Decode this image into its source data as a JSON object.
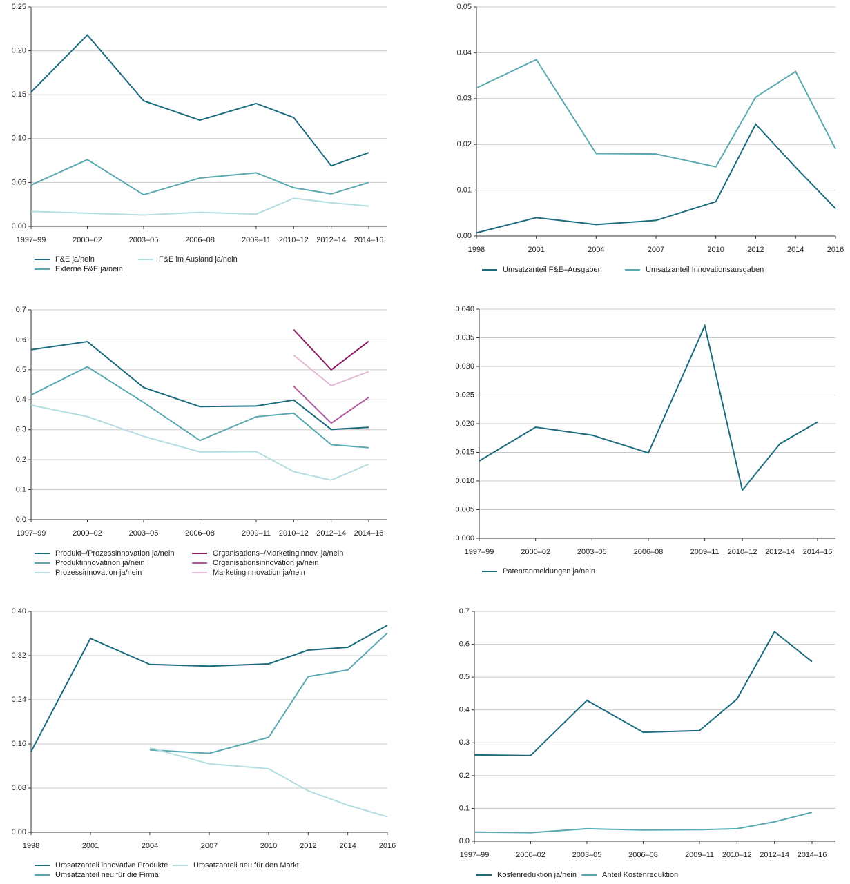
{
  "chart_data": [
    {
      "type": "line",
      "categories": [
        "1997–99",
        "2000–02",
        "2003–05",
        "2006–08",
        "2009–11",
        "2010–12",
        "2012–14",
        "2014–16"
      ],
      "ylim": [
        0,
        0.25
      ],
      "yticks": [
        {
          "value": 0,
          "label": "0.00"
        },
        {
          "value": 0.05,
          "label": "0.05"
        },
        {
          "value": 0.1,
          "label": "0.10"
        },
        {
          "value": 0.15,
          "label": "0.15"
        },
        {
          "value": 0.2,
          "label": "0.20"
        },
        {
          "value": 0.25,
          "label": "0.25"
        }
      ],
      "grid": true,
      "series": [
        {
          "name": "F&E ja/nein",
          "color": "#1b6b7e",
          "values": [
            0.153,
            0.218,
            0.143,
            0.121,
            0.14,
            0.124,
            0.069,
            0.084
          ]
        },
        {
          "name": "Externe F&E ja/nein",
          "color": "#5aa9b0",
          "values": [
            0.047,
            0.076,
            0.036,
            0.055,
            0.061,
            0.044,
            0.037,
            0.05
          ]
        },
        {
          "name": "F&E im Ausland ja/nein",
          "color": "#b3dde2",
          "values": [
            0.017,
            0.015,
            0.013,
            0.016,
            0.014,
            0.032,
            0.027,
            0.023
          ]
        }
      ]
    },
    {
      "type": "line",
      "x": [
        1998,
        2001,
        2004,
        2007,
        2010,
        2012,
        2014,
        2016
      ],
      "xlim": [
        1998,
        2016
      ],
      "xticks": [
        1998,
        2001,
        2004,
        2007,
        2010,
        2012,
        2014,
        2016
      ],
      "ylim": [
        0,
        0.05
      ],
      "yticks": [
        {
          "value": 0,
          "label": "0.00"
        },
        {
          "value": 0.01,
          "label": "0.01"
        },
        {
          "value": 0.02,
          "label": "0.02"
        },
        {
          "value": 0.03,
          "label": "0.03"
        },
        {
          "value": 0.04,
          "label": "0.04"
        },
        {
          "value": 0.05,
          "label": "0.05"
        }
      ],
      "grid": true,
      "series": [
        {
          "name": "Umsatzanteil F&E–Ausgaben",
          "color": "#1b6b7e",
          "values": [
            0.0007,
            0.004,
            0.0025,
            0.0034,
            0.0075,
            0.0244,
            0.015,
            0.006
          ]
        },
        {
          "name": "Umsatzanteil Innovationsausgaben",
          "color": "#5aa9b0",
          "values": [
            0.0323,
            0.0385,
            0.018,
            0.0179,
            0.0151,
            0.0303,
            0.0359,
            0.019
          ]
        }
      ]
    },
    {
      "type": "line",
      "categories": [
        "1997–99",
        "2000–02",
        "2003–05",
        "2006–08",
        "2009–11",
        "2010–12",
        "2012–14",
        "2014–16"
      ],
      "ylim": [
        0,
        0.7
      ],
      "yticks": [
        {
          "value": 0,
          "label": "0.0"
        },
        0.1,
        0.2,
        0.3,
        0.4,
        0.5,
        0.6,
        0.7
      ],
      "grid": true,
      "series": [
        {
          "name": "Produkt–/Prozessinnovation ja/nein",
          "color": "#1b6b7e",
          "values": [
            0.567,
            0.594,
            0.441,
            0.377,
            0.379,
            0.399,
            0.301,
            0.308
          ]
        },
        {
          "name": "Produktinnovatinon ja/nein",
          "color": "#5aa9b0",
          "values": [
            0.416,
            0.51,
            0.391,
            0.264,
            0.343,
            0.355,
            0.25,
            0.24
          ]
        },
        {
          "name": "Prozessinnovation ja/nein",
          "color": "#b3dde2",
          "values": [
            0.382,
            0.344,
            0.278,
            0.226,
            0.227,
            0.16,
            0.132,
            0.185
          ]
        },
        {
          "name": "Organisations–/Marketinginnov. ja/nein",
          "color": "#8a1e62",
          "values": [
            null,
            null,
            null,
            null,
            null,
            0.634,
            0.5,
            0.595
          ]
        },
        {
          "name": "Organisationsinnovation ja/nein",
          "color": "#b05aa0",
          "values": [
            null,
            null,
            null,
            null,
            null,
            0.445,
            0.322,
            0.408
          ]
        },
        {
          "name": "Marketinginnovation ja/nein",
          "color": "#e4b8d6",
          "values": [
            null,
            null,
            null,
            null,
            null,
            0.549,
            0.447,
            0.494
          ]
        }
      ]
    },
    {
      "type": "line",
      "categories": [
        "1997–99",
        "2000–02",
        "2003–05",
        "2006–08",
        "2009–11",
        "2010–12",
        "2012–14",
        "2014–16"
      ],
      "ylim": [
        0,
        0.04
      ],
      "yticks": [
        {
          "value": 0,
          "label": "0.000"
        },
        {
          "value": 0.005,
          "label": "0.005"
        },
        {
          "value": 0.01,
          "label": "0.010"
        },
        {
          "value": 0.015,
          "label": "0.015"
        },
        {
          "value": 0.02,
          "label": "0.020"
        },
        {
          "value": 0.025,
          "label": "0.025"
        },
        {
          "value": 0.03,
          "label": "0.030"
        },
        {
          "value": 0.035,
          "label": "0.035"
        },
        {
          "value": 0.04,
          "label": "0.040"
        }
      ],
      "grid": true,
      "series": [
        {
          "name": "Patentanmeldungen ja/nein",
          "color": "#1b6b7e",
          "values": [
            0.0135,
            0.0194,
            0.018,
            0.0149,
            0.0371,
            0.0084,
            0.0165,
            0.0203
          ]
        }
      ]
    },
    {
      "type": "line",
      "x": [
        1998,
        2001,
        2004,
        2007,
        2010,
        2012,
        2014,
        2016
      ],
      "xlim": [
        1998,
        2016
      ],
      "xticks": [
        1998,
        2001,
        2004,
        2007,
        2010,
        2012,
        2014,
        2016
      ],
      "ylim": [
        0,
        0.4
      ],
      "yticks": [
        {
          "value": 0,
          "label": "0.00"
        },
        {
          "value": 0.08,
          "label": "0.08"
        },
        {
          "value": 0.16,
          "label": "0.16"
        },
        {
          "value": 0.24,
          "label": "0.24"
        },
        {
          "value": 0.32,
          "label": "0.32"
        },
        {
          "value": 0.4,
          "label": "0.40"
        }
      ],
      "grid": true,
      "series": [
        {
          "name": "Umsatzanteil innovative Produkte",
          "color": "#1b6b7e",
          "values": [
            0.146,
            0.351,
            0.304,
            0.301,
            0.305,
            0.33,
            0.335,
            0.375
          ]
        },
        {
          "name": "Umsatzanteil neu für die Firma",
          "color": "#5aa9b0",
          "values": [
            null,
            null,
            0.149,
            0.143,
            0.172,
            0.282,
            0.294,
            0.361
          ]
        },
        {
          "name": "Umsatzanteil neu für den Markt",
          "color": "#b3dde2",
          "values": [
            null,
            null,
            0.153,
            0.124,
            0.115,
            0.075,
            0.049,
            0.028
          ]
        }
      ]
    },
    {
      "type": "line",
      "categories": [
        "1997–99",
        "2000–02",
        "2003–05",
        "2006–08",
        "2009–11",
        "2010–12",
        "2012–14",
        "2014–16"
      ],
      "ylim": [
        0,
        0.7
      ],
      "yticks": [
        {
          "value": 0,
          "label": "0.0"
        },
        0.1,
        0.2,
        0.3,
        0.4,
        0.5,
        0.6,
        0.7
      ],
      "grid": true,
      "series": [
        {
          "name": "Kostenreduktion ja/nein",
          "color": "#1b6b7e",
          "values": [
            0.263,
            0.261,
            0.429,
            0.332,
            0.337,
            0.433,
            0.638,
            0.547
          ]
        },
        {
          "name": "Anteil Kostenreduktion",
          "color": "#5aa9b0",
          "values": [
            0.028,
            0.026,
            0.038,
            0.034,
            0.035,
            0.038,
            0.059,
            0.088
          ]
        }
      ]
    }
  ]
}
